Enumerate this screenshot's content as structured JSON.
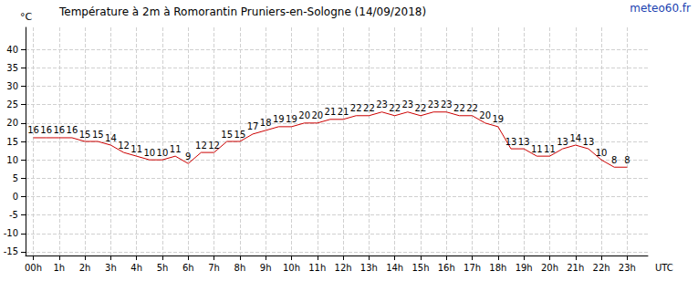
{
  "chart_data": {
    "type": "line",
    "title": "Température à 2m à Romorantin Pruniers-en-Sologne (14/09/2018)",
    "annotations": [
      "meteo60.fr"
    ],
    "x_label": "UTC",
    "y_label": "°C",
    "x": [
      0,
      0.5,
      1,
      1.5,
      2,
      2.5,
      3,
      3.5,
      4,
      4.5,
      5,
      5.5,
      6,
      6.5,
      7,
      7.5,
      8,
      8.5,
      9,
      9.5,
      10,
      10.5,
      11,
      11.5,
      12,
      12.5,
      13,
      13.5,
      14,
      14.5,
      15,
      15.5,
      16,
      16.5,
      17,
      17.5,
      18,
      18.5,
      19,
      19.5,
      20,
      20.5,
      21,
      21.5,
      22,
      22.5,
      23
    ],
    "values": [
      16,
      16,
      16,
      16,
      15,
      15,
      14,
      12,
      11,
      10,
      10,
      11,
      9,
      12,
      12,
      15,
      15,
      17,
      18,
      19,
      19,
      20,
      20,
      21,
      21,
      22,
      22,
      23,
      22,
      23,
      22,
      23,
      23,
      22,
      22,
      20,
      19,
      13,
      13,
      11,
      11,
      13,
      14,
      13,
      10,
      8,
      8
    ],
    "color": "#cc0000",
    "marker": "none",
    "data_labels": true,
    "grid": true,
    "xlim": [
      -0.3,
      23.8
    ],
    "xticks": [
      {
        "value": 0,
        "label": "00h"
      },
      {
        "value": 1,
        "label": "1h"
      },
      {
        "value": 2,
        "label": "2h"
      },
      {
        "value": 3,
        "label": "3h"
      },
      {
        "value": 4,
        "label": "4h"
      },
      {
        "value": 5,
        "label": "5h"
      },
      {
        "value": 6,
        "label": "6h"
      },
      {
        "value": 7,
        "label": "7h"
      },
      {
        "value": 8,
        "label": "8h"
      },
      {
        "value": 9,
        "label": "9h"
      },
      {
        "value": 10,
        "label": "10h"
      },
      {
        "value": 11,
        "label": "11h"
      },
      {
        "value": 12,
        "label": "12h"
      },
      {
        "value": 13,
        "label": "13h"
      },
      {
        "value": 14,
        "label": "14h"
      },
      {
        "value": 15,
        "label": "15h"
      },
      {
        "value": 16,
        "label": "16h"
      },
      {
        "value": 17,
        "label": "17h"
      },
      {
        "value": 18,
        "label": "18h"
      },
      {
        "value": 19,
        "label": "19h"
      },
      {
        "value": 20,
        "label": "20h"
      },
      {
        "value": 21,
        "label": "21h"
      },
      {
        "value": 22,
        "label": "22h"
      },
      {
        "value": 23,
        "label": "23h"
      }
    ],
    "ylim": [
      -16,
      46
    ],
    "yticks": [
      -15,
      -10,
      -5,
      0,
      5,
      10,
      15,
      20,
      25,
      30,
      35,
      40
    ]
  }
}
